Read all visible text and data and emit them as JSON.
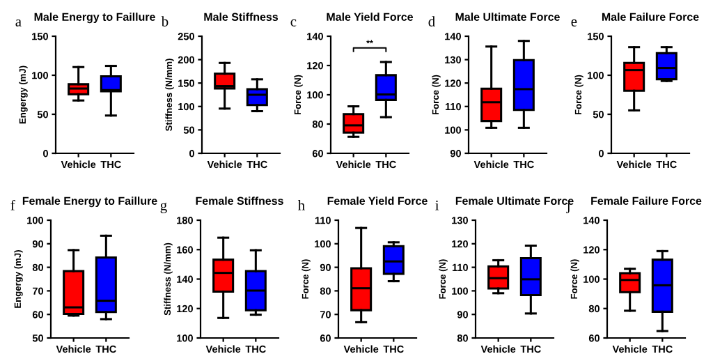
{
  "chart_data": [
    {
      "type": "box",
      "title": "Male Energy to Faillure",
      "ylabel": "Engergy (mJ)",
      "annotations": [
        "a"
      ],
      "categories": [
        "Vehicle",
        "THC"
      ],
      "colors": [
        "#ff0000",
        "#0000ff"
      ],
      "ylim": [
        0,
        150
      ],
      "yticks": [
        0,
        50,
        100,
        150
      ],
      "boxes": [
        {
          "low": 67.7,
          "q1": 75.7,
          "median": 83,
          "q3": 88.5,
          "high": 110.5
        },
        {
          "low": 48.4,
          "q1": 79.6,
          "median": 81,
          "q3": 98.6,
          "high": 112
        }
      ]
    },
    {
      "type": "box",
      "title": "Male Stiffness",
      "ylabel": "Stiffness (N/mm)",
      "annotations": [
        "b"
      ],
      "categories": [
        "Vehicle",
        "THC"
      ],
      "colors": [
        "#ff0000",
        "#0000ff"
      ],
      "ylim": [
        0,
        250
      ],
      "yticks": [
        0,
        50,
        100,
        150,
        200,
        250
      ],
      "boxes": [
        {
          "low": 95.5,
          "q1": 138.6,
          "median": 143.5,
          "q3": 170,
          "high": 193
        },
        {
          "low": 90,
          "q1": 103,
          "median": 125,
          "q3": 137,
          "high": 158
        }
      ]
    },
    {
      "type": "box",
      "title": "Male Yield Force",
      "ylabel": "Force (N)",
      "annotations": [
        "c",
        "**"
      ],
      "categories": [
        "Vehicle",
        "THC"
      ],
      "colors": [
        "#ff0000",
        "#0000ff"
      ],
      "ylim": [
        60,
        140
      ],
      "yticks": [
        60,
        80,
        100,
        120,
        140
      ],
      "boxes": [
        {
          "low": 71.3,
          "q1": 74.2,
          "median": 79.1,
          "q3": 86.8,
          "high": 92.1
        },
        {
          "low": 84.7,
          "q1": 96.5,
          "median": 100.2,
          "q3": 113.4,
          "high": 122.4
        }
      ]
    },
    {
      "type": "box",
      "title": "Male Ultimate Force",
      "ylabel": "Force (N)",
      "annotations": [
        "d"
      ],
      "categories": [
        "Vehicle",
        "THC"
      ],
      "colors": [
        "#ff0000",
        "#0000ff"
      ],
      "ylim": [
        90,
        140
      ],
      "yticks": [
        90,
        100,
        110,
        120,
        130,
        140
      ],
      "boxes": [
        {
          "low": 100.9,
          "q1": 103.8,
          "median": 111.8,
          "q3": 117.6,
          "high": 135.6
        },
        {
          "low": 100.9,
          "q1": 108.5,
          "median": 117.4,
          "q3": 129.8,
          "high": 138
        }
      ]
    },
    {
      "type": "box",
      "title": "Male Failure Force",
      "ylabel": "Force (N)",
      "annotations": [
        "e"
      ],
      "categories": [
        "Vehicle",
        "THC"
      ],
      "colors": [
        "#ff0000",
        "#0000ff"
      ],
      "ylim": [
        0,
        150
      ],
      "yticks": [
        0,
        50,
        100,
        150
      ],
      "boxes": [
        {
          "low": 55,
          "q1": 80.2,
          "median": 106.6,
          "q3": 115.8,
          "high": 136
        },
        {
          "low": 92.7,
          "q1": 95,
          "median": 109.3,
          "q3": 128.3,
          "high": 136
        }
      ]
    },
    {
      "type": "box",
      "title": "Female Energy to Faillure",
      "ylabel": "Engergy (mJ)",
      "annotations": [
        "f"
      ],
      "categories": [
        "Vehicle",
        "THC"
      ],
      "colors": [
        "#ff0000",
        "#0000ff"
      ],
      "ylim": [
        50,
        100
      ],
      "yticks": [
        50,
        60,
        70,
        80,
        90,
        100
      ],
      "boxes": [
        {
          "low": 59.5,
          "q1": 60.2,
          "median": 63,
          "q3": 78.4,
          "high": 87.3
        },
        {
          "low": 58,
          "q1": 61,
          "median": 65.8,
          "q3": 84.2,
          "high": 93.4
        }
      ]
    },
    {
      "type": "box",
      "title": "Female Stiffness",
      "ylabel": "Stiffness (N/mm)",
      "annotations": [
        "g"
      ],
      "categories": [
        "Vehicle",
        "THC"
      ],
      "colors": [
        "#ff0000",
        "#0000ff"
      ],
      "ylim": [
        100,
        180
      ],
      "yticks": [
        100,
        120,
        140,
        160,
        180
      ],
      "boxes": [
        {
          "low": 113.6,
          "q1": 131.5,
          "median": 144.2,
          "q3": 153.2,
          "high": 168.1
        },
        {
          "low": 115.8,
          "q1": 118.8,
          "median": 132.2,
          "q3": 145.4,
          "high": 159.6
        }
      ]
    },
    {
      "type": "box",
      "title": "Female Yield Force",
      "ylabel": "Force (N)",
      "annotations": [
        "h"
      ],
      "categories": [
        "Vehicle",
        "THC"
      ],
      "colors": [
        "#ff0000",
        "#0000ff"
      ],
      "ylim": [
        60,
        110
      ],
      "yticks": [
        60,
        70,
        80,
        90,
        100,
        110
      ],
      "boxes": [
        {
          "low": 66.7,
          "q1": 71.8,
          "median": 81.1,
          "q3": 89.6,
          "high": 106.7
        },
        {
          "low": 84.1,
          "q1": 87.2,
          "median": 92.5,
          "q3": 99,
          "high": 100.6
        }
      ]
    },
    {
      "type": "box",
      "title": "Female Ultimate Force",
      "ylabel": "Force (N)",
      "annotations": [
        "i"
      ],
      "categories": [
        "Vehicle",
        "THC"
      ],
      "colors": [
        "#ff0000",
        "#0000ff"
      ],
      "ylim": [
        80,
        130
      ],
      "yticks": [
        80,
        90,
        100,
        110,
        120,
        130
      ],
      "boxes": [
        {
          "low": 99,
          "q1": 101,
          "median": 105.4,
          "q3": 110.4,
          "high": 113
        },
        {
          "low": 90.4,
          "q1": 98.2,
          "median": 104.9,
          "q3": 113.9,
          "high": 119.2
        }
      ]
    },
    {
      "type": "box",
      "title": "Female Failure Force",
      "ylabel": "Force (N)",
      "annotations": [
        "j"
      ],
      "categories": [
        "Vehicle",
        "THC"
      ],
      "colors": [
        "#ff0000",
        "#0000ff"
      ],
      "ylim": [
        60,
        140
      ],
      "yticks": [
        60,
        80,
        100,
        120,
        140
      ],
      "boxes": [
        {
          "low": 78.5,
          "q1": 91.1,
          "median": 99.4,
          "q3": 104,
          "high": 107
        },
        {
          "low": 64.7,
          "q1": 77.8,
          "median": 95.8,
          "q3": 113.2,
          "high": 119
        }
      ]
    }
  ]
}
